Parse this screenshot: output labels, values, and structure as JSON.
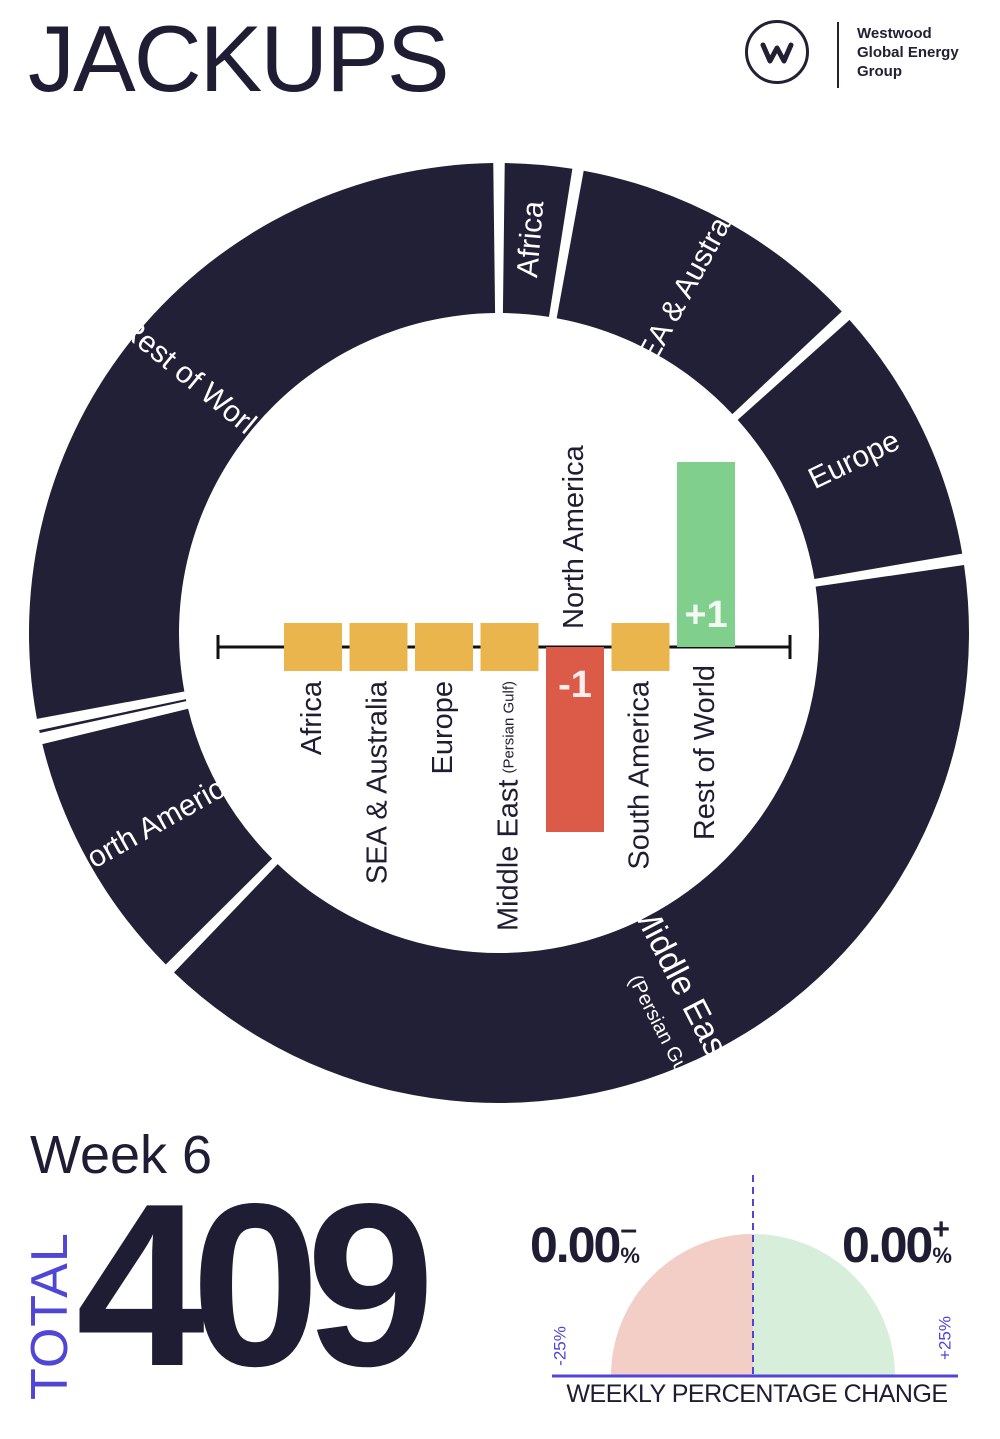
{
  "title": "JACKUPS",
  "logo": {
    "name": "Westwood Global Energy Group",
    "lines": [
      "Westwood",
      "Global Energy",
      "Group"
    ]
  },
  "colors": {
    "ring": "#222037",
    "neutral": "#ebb54e",
    "decrease": "#dc5a48",
    "increase": "#80cf8c",
    "accent": "#4f45d6",
    "gauge_negative": "#f3cec7",
    "gauge_positive": "#d7efda",
    "text_dark": "#1f1d33"
  },
  "chart_data": [
    {
      "type": "pie",
      "variant": "donut",
      "segments": [
        {
          "label": "Africa",
          "value": 11
        },
        {
          "label": "SEA & Australia",
          "value": 43
        },
        {
          "label": "Europe",
          "value": 38
        },
        {
          "label": "Middle East",
          "sublabel": "(Persian Gulf & Red Sea)",
          "value": 163
        },
        {
          "label": "North America",
          "value": 37
        },
        {
          "label": "",
          "value": 2
        },
        {
          "label": "Rest of World",
          "value": 115
        }
      ]
    },
    {
      "type": "bar",
      "title": "",
      "categories": [
        {
          "label": "Africa",
          "sub": ""
        },
        {
          "label": "SEA & Australia",
          "sub": ""
        },
        {
          "label": "Europe",
          "sub": ""
        },
        {
          "label": "Middle East",
          "sub": "(Persian Gulf)"
        },
        {
          "label": "North America",
          "sub": ""
        },
        {
          "label": "South America",
          "sub": ""
        },
        {
          "label": "Rest of World",
          "sub": ""
        }
      ],
      "values": [
        0,
        0,
        0,
        0,
        -1,
        0,
        1
      ],
      "value_labels": [
        "",
        "",
        "",
        "",
        "-1",
        "",
        "+1"
      ]
    }
  ],
  "summary": {
    "week": "Week 6",
    "total_label": "TOTAL",
    "total": "409"
  },
  "gauge": {
    "negative_value": "0.00",
    "negative_sign": "–",
    "negative_unit": "%",
    "positive_value": "0.00",
    "positive_sign": "+",
    "positive_unit": "%",
    "min_label": "-25%",
    "max_label": "+25%",
    "caption": "WEEKLY PERCENTAGE CHANGE",
    "negative_change_pct": 0,
    "positive_change_pct": 0
  }
}
